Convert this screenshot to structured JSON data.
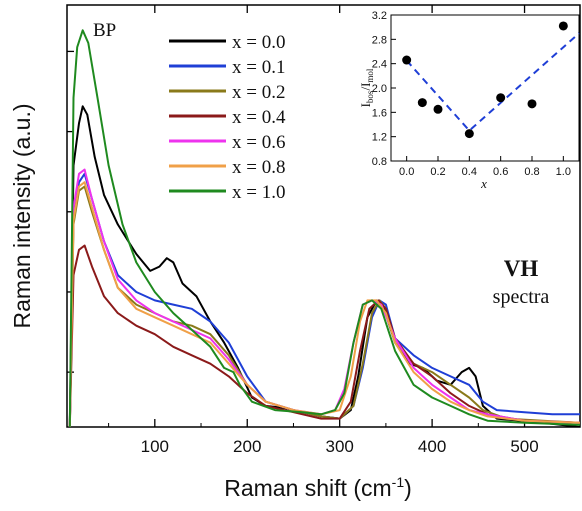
{
  "chart_data": [
    {
      "type": "line",
      "xlabel": "Raman shift (cm",
      "xlabel_sup": "-1",
      "xlabel_close": ")",
      "ylabel": "Raman intensity (a.u.)",
      "xlim": [
        5,
        560
      ],
      "ylim": [
        0,
        1.0
      ],
      "xticks": [
        100,
        200,
        300,
        400,
        500
      ],
      "yticks_unlabeled": true,
      "legend_placement": "top-center",
      "annotations": {
        "panel": "BP",
        "mode": "VH",
        "mode_sub": "spectra"
      },
      "series": [
        {
          "name": "x = 0.0",
          "color": "#000000",
          "points": [
            [
              8,
              0.0
            ],
            [
              12,
              0.62
            ],
            [
              18,
              0.72
            ],
            [
              22,
              0.76
            ],
            [
              27,
              0.74
            ],
            [
              35,
              0.64
            ],
            [
              45,
              0.55
            ],
            [
              60,
              0.48
            ],
            [
              80,
              0.41
            ],
            [
              95,
              0.37
            ],
            [
              105,
              0.38
            ],
            [
              113,
              0.4
            ],
            [
              120,
              0.39
            ],
            [
              130,
              0.34
            ],
            [
              145,
              0.31
            ],
            [
              160,
              0.25
            ],
            [
              175,
              0.2
            ],
            [
              190,
              0.14
            ],
            [
              205,
              0.07
            ],
            [
              220,
              0.05
            ],
            [
              240,
              0.045
            ],
            [
              260,
              0.035
            ],
            [
              280,
              0.025
            ],
            [
              300,
              0.02
            ],
            [
              312,
              0.04
            ],
            [
              320,
              0.12
            ],
            [
              330,
              0.26
            ],
            [
              340,
              0.3
            ],
            [
              348,
              0.28
            ],
            [
              360,
              0.2
            ],
            [
              375,
              0.15
            ],
            [
              390,
              0.14
            ],
            [
              405,
              0.11
            ],
            [
              420,
              0.1
            ],
            [
              432,
              0.13
            ],
            [
              440,
              0.14
            ],
            [
              447,
              0.12
            ],
            [
              455,
              0.05
            ],
            [
              470,
              0.02
            ],
            [
              520,
              0.01
            ],
            [
              560,
              0.0
            ]
          ]
        },
        {
          "name": "x = 0.1",
          "color": "#1f3fd6",
          "points": [
            [
              8,
              0.0
            ],
            [
              12,
              0.5
            ],
            [
              18,
              0.58
            ],
            [
              24,
              0.6
            ],
            [
              32,
              0.54
            ],
            [
              45,
              0.44
            ],
            [
              60,
              0.36
            ],
            [
              80,
              0.32
            ],
            [
              100,
              0.3
            ],
            [
              120,
              0.29
            ],
            [
              140,
              0.28
            ],
            [
              160,
              0.25
            ],
            [
              180,
              0.2
            ],
            [
              200,
              0.12
            ],
            [
              220,
              0.06
            ],
            [
              250,
              0.04
            ],
            [
              280,
              0.025
            ],
            [
              300,
              0.02
            ],
            [
              315,
              0.05
            ],
            [
              325,
              0.14
            ],
            [
              335,
              0.26
            ],
            [
              343,
              0.3
            ],
            [
              350,
              0.29
            ],
            [
              360,
              0.21
            ],
            [
              380,
              0.17
            ],
            [
              400,
              0.14
            ],
            [
              420,
              0.12
            ],
            [
              440,
              0.1
            ],
            [
              455,
              0.06
            ],
            [
              470,
              0.04
            ],
            [
              500,
              0.035
            ],
            [
              530,
              0.03
            ],
            [
              560,
              0.03
            ]
          ]
        },
        {
          "name": "x = 0.2",
          "color": "#8a7a1a",
          "points": [
            [
              8,
              0.0
            ],
            [
              12,
              0.48
            ],
            [
              18,
              0.56
            ],
            [
              24,
              0.57
            ],
            [
              32,
              0.51
            ],
            [
              45,
              0.42
            ],
            [
              60,
              0.33
            ],
            [
              80,
              0.29
            ],
            [
              100,
              0.27
            ],
            [
              120,
              0.25
            ],
            [
              140,
              0.24
            ],
            [
              160,
              0.22
            ],
            [
              180,
              0.17
            ],
            [
              200,
              0.1
            ],
            [
              220,
              0.06
            ],
            [
              250,
              0.04
            ],
            [
              280,
              0.025
            ],
            [
              300,
              0.02
            ],
            [
              315,
              0.05
            ],
            [
              325,
              0.15
            ],
            [
              335,
              0.27
            ],
            [
              343,
              0.3
            ],
            [
              350,
              0.28
            ],
            [
              360,
              0.2
            ],
            [
              380,
              0.15
            ],
            [
              400,
              0.13
            ],
            [
              420,
              0.1
            ],
            [
              440,
              0.07
            ],
            [
              455,
              0.04
            ],
            [
              480,
              0.02
            ],
            [
              520,
              0.015
            ],
            [
              560,
              0.01
            ]
          ]
        },
        {
          "name": "x = 0.4",
          "color": "#8b1a1a",
          "points": [
            [
              8,
              0.0
            ],
            [
              12,
              0.36
            ],
            [
              18,
              0.42
            ],
            [
              24,
              0.43
            ],
            [
              32,
              0.38
            ],
            [
              45,
              0.31
            ],
            [
              60,
              0.27
            ],
            [
              80,
              0.24
            ],
            [
              100,
              0.22
            ],
            [
              120,
              0.19
            ],
            [
              140,
              0.17
            ],
            [
              160,
              0.15
            ],
            [
              180,
              0.12
            ],
            [
              200,
              0.08
            ],
            [
              220,
              0.05
            ],
            [
              250,
              0.035
            ],
            [
              280,
              0.02
            ],
            [
              300,
              0.02
            ],
            [
              312,
              0.06
            ],
            [
              322,
              0.18
            ],
            [
              332,
              0.28
            ],
            [
              342,
              0.3
            ],
            [
              350,
              0.28
            ],
            [
              360,
              0.21
            ],
            [
              380,
              0.15
            ],
            [
              400,
              0.12
            ],
            [
              420,
              0.08
            ],
            [
              440,
              0.05
            ],
            [
              460,
              0.03
            ],
            [
              500,
              0.015
            ],
            [
              560,
              0.01
            ]
          ]
        },
        {
          "name": "x = 0.6",
          "color": "#ee33ee",
          "points": [
            [
              8,
              0.0
            ],
            [
              12,
              0.52
            ],
            [
              18,
              0.6
            ],
            [
              24,
              0.61
            ],
            [
              32,
              0.54
            ],
            [
              45,
              0.44
            ],
            [
              60,
              0.35
            ],
            [
              80,
              0.3
            ],
            [
              100,
              0.27
            ],
            [
              120,
              0.25
            ],
            [
              140,
              0.23
            ],
            [
              160,
              0.21
            ],
            [
              180,
              0.16
            ],
            [
              200,
              0.1
            ],
            [
              220,
              0.06
            ],
            [
              250,
              0.04
            ],
            [
              280,
              0.03
            ],
            [
              295,
              0.04
            ],
            [
              305,
              0.09
            ],
            [
              315,
              0.2
            ],
            [
              325,
              0.29
            ],
            [
              335,
              0.3
            ],
            [
              345,
              0.29
            ],
            [
              360,
              0.21
            ],
            [
              380,
              0.14
            ],
            [
              400,
              0.1
            ],
            [
              420,
              0.07
            ],
            [
              440,
              0.04
            ],
            [
              460,
              0.03
            ],
            [
              500,
              0.015
            ],
            [
              560,
              0.01
            ]
          ]
        },
        {
          "name": "x = 0.8",
          "color": "#f0a048",
          "points": [
            [
              8,
              0.0
            ],
            [
              12,
              0.49
            ],
            [
              18,
              0.57
            ],
            [
              24,
              0.58
            ],
            [
              32,
              0.52
            ],
            [
              45,
              0.42
            ],
            [
              60,
              0.33
            ],
            [
              80,
              0.28
            ],
            [
              100,
              0.26
            ],
            [
              120,
              0.24
            ],
            [
              140,
              0.22
            ],
            [
              160,
              0.2
            ],
            [
              180,
              0.15
            ],
            [
              200,
              0.1
            ],
            [
              220,
              0.06
            ],
            [
              250,
              0.04
            ],
            [
              280,
              0.03
            ],
            [
              300,
              0.04
            ],
            [
              312,
              0.12
            ],
            [
              322,
              0.25
            ],
            [
              330,
              0.3
            ],
            [
              340,
              0.3
            ],
            [
              350,
              0.27
            ],
            [
              360,
              0.2
            ],
            [
              380,
              0.13
            ],
            [
              400,
              0.09
            ],
            [
              420,
              0.06
            ],
            [
              440,
              0.04
            ],
            [
              460,
              0.025
            ],
            [
              500,
              0.015
            ],
            [
              560,
              0.01
            ]
          ]
        },
        {
          "name": "x = 1.0",
          "color": "#1f8a1f",
          "points": [
            [
              8,
              0.0
            ],
            [
              12,
              0.78
            ],
            [
              16,
              0.9
            ],
            [
              22,
              0.94
            ],
            [
              28,
              0.91
            ],
            [
              38,
              0.78
            ],
            [
              50,
              0.62
            ],
            [
              65,
              0.48
            ],
            [
              80,
              0.39
            ],
            [
              100,
              0.32
            ],
            [
              120,
              0.27
            ],
            [
              140,
              0.23
            ],
            [
              160,
              0.19
            ],
            [
              175,
              0.14
            ],
            [
              185,
              0.13
            ],
            [
              192,
              0.1
            ],
            [
              205,
              0.06
            ],
            [
              230,
              0.04
            ],
            [
              260,
              0.035
            ],
            [
              280,
              0.03
            ],
            [
              295,
              0.04
            ],
            [
              305,
              0.08
            ],
            [
              315,
              0.2
            ],
            [
              325,
              0.29
            ],
            [
              335,
              0.3
            ],
            [
              345,
              0.28
            ],
            [
              360,
              0.18
            ],
            [
              380,
              0.1
            ],
            [
              400,
              0.07
            ],
            [
              420,
              0.05
            ],
            [
              440,
              0.03
            ],
            [
              460,
              0.015
            ],
            [
              500,
              0.01
            ],
            [
              560,
              0.005
            ]
          ]
        }
      ]
    },
    {
      "type": "scatter",
      "ylabel": "I",
      "ylabel_sub1": "bos",
      "ylabel_mid": "/I",
      "ylabel_sub2": "mol",
      "xlabel": "x",
      "xlim": [
        -0.1,
        1.1
      ],
      "ylim": [
        0.8,
        3.2
      ],
      "xticks": [
        "0.0",
        "0.2",
        "0.4",
        "0.6",
        "0.8",
        "1.0"
      ],
      "yticks": [
        "0.8",
        "1.2",
        "1.6",
        "2.0",
        "2.4",
        "2.8",
        "3.2"
      ],
      "points": [
        [
          0.0,
          2.46
        ],
        [
          0.1,
          1.76
        ],
        [
          0.2,
          1.65
        ],
        [
          0.4,
          1.25
        ],
        [
          0.6,
          1.84
        ],
        [
          0.8,
          1.74
        ],
        [
          1.0,
          3.02
        ]
      ],
      "fit_line": [
        [
          0.0,
          2.45
        ],
        [
          0.4,
          1.3
        ],
        [
          1.1,
          2.9
        ]
      ],
      "fit_color": "#1f3fd6"
    }
  ]
}
